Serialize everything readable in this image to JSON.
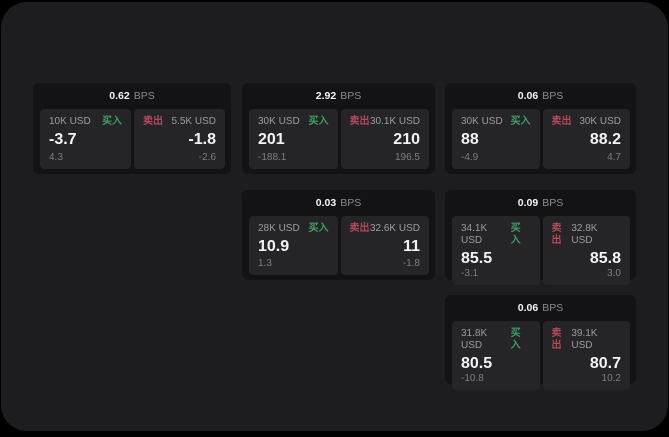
{
  "labels": {
    "buy": "买入",
    "sell": "卖出",
    "bps_unit": "BPS"
  },
  "colors": {
    "buy_green": "#3f9e63",
    "sell_red": "#b5485a",
    "window_bg": "#1d1d1f",
    "card_bg": "#131315",
    "panel_bg": "#252528"
  },
  "cards": [
    {
      "bps": "0.62",
      "buy": {
        "amount": "10K USD",
        "price": "-3.7",
        "delta": "4.3"
      },
      "sell": {
        "amount": "5.5K USD",
        "price": "-1.8",
        "delta": "-2.6"
      }
    },
    {
      "bps": "2.92",
      "buy": {
        "amount": "30K USD",
        "price": "201",
        "delta": "-188.1"
      },
      "sell": {
        "amount": "30.1K USD",
        "price": "210",
        "delta": "196.5"
      }
    },
    {
      "bps": "0.06",
      "buy": {
        "amount": "30K USD",
        "price": "88",
        "delta": "-4.9"
      },
      "sell": {
        "amount": "30K USD",
        "price": "88.2",
        "delta": "4.7"
      }
    },
    {
      "bps": "0.03",
      "buy": {
        "amount": "28K USD",
        "price": "10.9",
        "delta": "1.3"
      },
      "sell": {
        "amount": "32.6K USD",
        "price": "11",
        "delta": "-1.8"
      }
    },
    {
      "bps": "0.09",
      "buy": {
        "amount": "34.1K USD",
        "price": "85.5",
        "delta": "-3.1"
      },
      "sell": {
        "amount": "32.8K USD",
        "price": "85.8",
        "delta": "3.0"
      }
    },
    {
      "bps": "0.06",
      "buy": {
        "amount": "31.8K USD",
        "price": "80.5",
        "delta": "-10.8"
      },
      "sell": {
        "amount": "39.1K USD",
        "price": "80.7",
        "delta": "10.2"
      }
    }
  ]
}
